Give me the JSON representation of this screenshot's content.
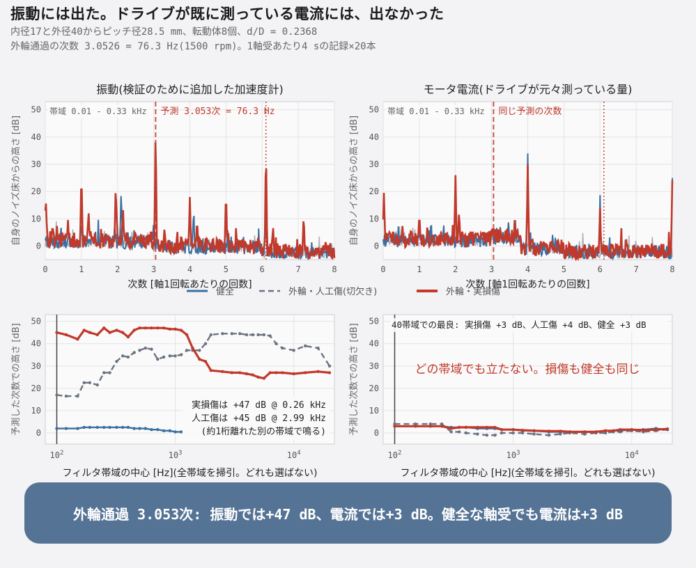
{
  "header": {
    "title": "振動には出た。ドライブが既に測っている電流には、出なかった",
    "subtitle1": "内径17と外径40からピッチ径28.5 mm、転動体8個、d/D = 0.2368",
    "subtitle2": "外輪通過の次数 3.0526 = 76.3 Hz(1500 rpm)。1軸受あたり4 sの記録×20本"
  },
  "legend": {
    "healthy": "健全",
    "artificial": "外輪・人工傷(切欠き)",
    "real": "外輪・実損傷"
  },
  "colors": {
    "healthy": "#3a6ea0",
    "artificial": "#6b7380",
    "real": "#c0392b",
    "banner": "#557395"
  },
  "banner": {
    "text": "外輪通過 3.053次: 振動では+47 dB、電流では+3 dB。健全な軸受でも電流は+3 dB"
  },
  "chart_data": [
    {
      "type": "line",
      "title": "振動(検証のために追加した加速度計)",
      "xlabel": "次数 [軸1回転あたりの回数]",
      "ylabel": "自身のノイズ床からの高さ [dB]",
      "xlim": [
        0,
        8
      ],
      "ylim": [
        -5,
        53
      ],
      "xticks": [
        0,
        1,
        2,
        3,
        4,
        5,
        6,
        7,
        8
      ],
      "yticks": [
        0,
        10,
        20,
        30,
        40,
        50
      ],
      "band_label": "帯域 0.01 - 0.33 kHz",
      "marker_label": "予測 3.053次 = 76.3 Hz",
      "marker_order": 3.053,
      "harmonic_order": 6.106,
      "grid": true,
      "peaks": {
        "real": [
          [
            0.02,
            16
          ],
          [
            0.2,
            8
          ],
          [
            1.0,
            28
          ],
          [
            1.2,
            12
          ],
          [
            1.95,
            24
          ],
          [
            2.15,
            14
          ],
          [
            3.053,
            45
          ],
          [
            3.3,
            7
          ],
          [
            4.0,
            18
          ],
          [
            4.2,
            10
          ],
          [
            5.0,
            21
          ],
          [
            6.106,
            38
          ],
          [
            6.3,
            8
          ],
          [
            7.15,
            12
          ]
        ],
        "healthy": [
          [
            1.0,
            9
          ],
          [
            2.1,
            21
          ],
          [
            3.0,
            9
          ],
          [
            4.1,
            11
          ],
          [
            6.1,
            12
          ],
          [
            7.15,
            10
          ]
        ]
      }
    },
    {
      "type": "line",
      "title": "モータ電流(ドライブが元々測っている量)",
      "xlabel": "次数 [軸1回転あたりの回数]",
      "ylabel": "自身のノイズ床からの高さ [dB]",
      "xlim": [
        0,
        8
      ],
      "ylim": [
        -5,
        53
      ],
      "xticks": [
        0,
        1,
        2,
        3,
        4,
        5,
        6,
        7,
        8
      ],
      "yticks": [
        0,
        10,
        20,
        30,
        40,
        50
      ],
      "band_label": "帯域 0.01 - 0.33 kHz",
      "marker_label": "同じ予測の次数",
      "marker_order": 3.053,
      "harmonic_order": 6.106,
      "grid": true,
      "peaks": {
        "real": [
          [
            0.02,
            20
          ],
          [
            1.0,
            12
          ],
          [
            2.0,
            26
          ],
          [
            2.1,
            13
          ],
          [
            3.0,
            7
          ],
          [
            4.0,
            30
          ],
          [
            6.0,
            14
          ],
          [
            8.0,
            24
          ]
        ],
        "healthy": [
          [
            4.0,
            34
          ],
          [
            6.0,
            15
          ],
          [
            8.0,
            25
          ]
        ]
      }
    },
    {
      "type": "line",
      "xscale": "log",
      "xlabel": "フィルタ帯域の中心 [Hz](全帯域を掃引。どれも選ばない)",
      "ylabel": "予測した次数での高さ [dB]",
      "xlim": [
        80,
        22000
      ],
      "ylim": [
        -5,
        53
      ],
      "yticks": [
        0,
        10,
        20,
        30,
        40,
        50
      ],
      "vline_hz": 100,
      "annotation": [
        "実損傷は +47 dB @ 0.26 kHz",
        "人工傷は +45 dB @ 2.99 kHz",
        "(約1桁離れた別の帯域で鳴る)"
      ],
      "grid": true,
      "series": [
        {
          "name": "外輪・実損傷",
          "key": "real",
          "x": [
            100,
            120,
            150,
            170,
            190,
            220,
            250,
            280,
            320,
            360,
            400,
            450,
            500,
            560,
            630,
            710,
            800,
            900,
            1000,
            1120,
            1250,
            1400,
            1600,
            1800,
            2000,
            2500,
            3000,
            3500,
            4000,
            4500,
            5000,
            5600,
            6300,
            7100,
            8000,
            10000,
            12500,
            16000,
            20000
          ],
          "y": [
            45,
            44,
            42,
            46,
            45,
            44,
            47,
            45,
            46,
            45,
            43,
            46,
            47,
            47,
            47,
            47,
            47,
            46.5,
            46.5,
            46,
            44,
            38,
            33,
            32,
            28,
            27.5,
            27,
            27,
            26.5,
            26,
            25,
            24.5,
            27,
            27,
            27,
            26.5,
            27,
            27.5,
            27
          ]
        },
        {
          "name": "外輪・人工傷(切欠き)",
          "key": "artificial",
          "x": [
            100,
            120,
            150,
            170,
            190,
            220,
            250,
            280,
            320,
            360,
            400,
            450,
            500,
            560,
            630,
            710,
            800,
            900,
            1000,
            1120,
            1250,
            1400,
            1600,
            1800,
            2000,
            2500,
            3000,
            3500,
            4000,
            4500,
            5000,
            5600,
            6300,
            7100,
            8000,
            10000,
            12500,
            16000,
            20000
          ],
          "y": [
            17,
            16.5,
            16.5,
            22.5,
            22.5,
            21.5,
            27,
            27,
            32,
            34.5,
            34,
            36,
            37,
            38,
            37.5,
            33,
            34,
            34.5,
            34.5,
            35,
            37,
            37,
            37,
            40,
            44,
            44.5,
            44.5,
            44.5,
            44,
            44,
            44,
            44,
            43.5,
            40,
            38,
            37,
            39,
            38,
            30
          ]
        },
        {
          "name": "健全",
          "key": "healthy",
          "x": [
            100,
            120,
            150,
            170,
            190,
            220,
            250,
            280,
            320,
            360,
            400,
            450,
            500,
            560,
            630,
            710,
            800,
            900,
            1000,
            1120
          ],
          "y": [
            2,
            2,
            2,
            2.5,
            2.5,
            2.5,
            2.5,
            2.5,
            2.5,
            2.5,
            2.5,
            2,
            2,
            2,
            1.5,
            1.5,
            1,
            1,
            0.5,
            0.5
          ]
        }
      ]
    },
    {
      "type": "line",
      "xscale": "log",
      "xlabel": "フィルタ帯域の中心 [Hz](全帯域を掃引。どれも選ばない)",
      "ylabel": "予測した次数での高さ [dB]",
      "xlim": [
        80,
        22000
      ],
      "ylim": [
        -5,
        53
      ],
      "yticks": [
        0,
        10,
        20,
        30,
        40,
        50
      ],
      "vline_hz": 100,
      "annotation_top": "40帯域での最良: 実損傷 +3 dB、人工傷 +4 dB、健全 +3 dB",
      "annotation_mid": "どの帯域でも立たない。損傷も健全も同じ",
      "grid": true,
      "series": [
        {
          "name": "外輪・実損傷",
          "key": "real",
          "x": [
            100,
            150,
            200,
            250,
            300,
            350,
            400,
            500,
            600,
            700,
            800,
            1000,
            1200,
            1500,
            2000,
            2500,
            3000,
            4000,
            5000,
            6000,
            7000,
            8000,
            10000,
            12500,
            16000,
            20000
          ],
          "y": [
            3,
            3,
            3,
            3,
            2,
            2.5,
            2.5,
            2.5,
            2.5,
            2.5,
            1.5,
            1.5,
            1.2,
            1,
            0.8,
            0.8,
            0.5,
            0.5,
            0.5,
            1,
            1,
            1.5,
            1.5,
            1.2,
            1.5,
            1.8
          ]
        },
        {
          "name": "外輪・人工傷(切欠き)",
          "key": "artificial",
          "x": [
            100,
            150,
            200,
            250,
            300,
            350,
            400,
            500,
            600,
            700,
            800,
            1000,
            1200,
            1500,
            2000,
            2500,
            3000,
            4000,
            5000,
            6000,
            7000,
            8000,
            10000,
            12500,
            16000,
            20000
          ],
          "y": [
            4,
            4,
            4,
            4,
            0.5,
            0.5,
            0,
            -0.5,
            -1,
            -1,
            0,
            0,
            0,
            -0.5,
            -1,
            -0.5,
            0,
            -0.5,
            0,
            0,
            0.5,
            0.5,
            1,
            0.5,
            1,
            1.5
          ]
        },
        {
          "name": "健全",
          "key": "healthy",
          "x": [
            100,
            150,
            200,
            250,
            300,
            350,
            400,
            500,
            600,
            700,
            800,
            1000,
            1200,
            1500,
            2000,
            2500,
            3000,
            4000,
            5000,
            6000,
            7000,
            8000,
            10000,
            12500,
            16000,
            20000
          ],
          "y": [
            3,
            3,
            3,
            3,
            2.5,
            2.5,
            2.5,
            2,
            2,
            2,
            1.5,
            1.5,
            1,
            1,
            0.5,
            0.5,
            0.5,
            0.5,
            0.5,
            1,
            1,
            1,
            1.5,
            1.5,
            2,
            1.5
          ]
        }
      ]
    }
  ]
}
